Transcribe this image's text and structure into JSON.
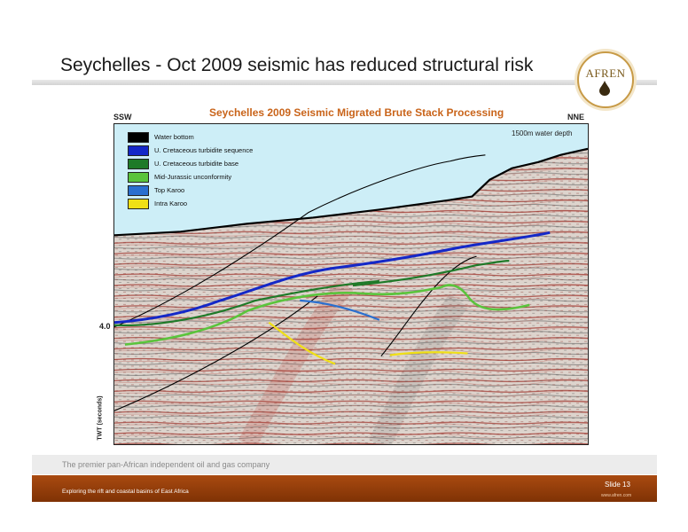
{
  "slide": {
    "title": "Seychelles - Oct 2009 seismic has reduced structural risk",
    "logo_text": "AFREN"
  },
  "figure": {
    "title": "Seychelles 2009 Seismic Migrated Brute Stack Processing",
    "left_direction": "SSW",
    "right_direction": "NNE",
    "water_depth_note": "1500m water depth",
    "axis_value": "4.0",
    "axis_label": "TWT (seconds)",
    "legend": [
      {
        "label": "Water bottom",
        "color": "#000000"
      },
      {
        "label": "U. Cretaceous turbidite sequence",
        "color": "#1428c8"
      },
      {
        "label": "U. Cretaceous turbidite base",
        "color": "#1e7a28"
      },
      {
        "label": "Mid-Jurassic unconformity",
        "color": "#5ac43c"
      },
      {
        "label": "Top Karoo",
        "color": "#2a6fcf"
      },
      {
        "label": "Intra Karoo",
        "color": "#f0e016"
      }
    ],
    "colors": {
      "sea": "#cdeef7",
      "seismic_base": "#d9cfc8",
      "reflector_red": "#9c2a22"
    }
  },
  "footer": {
    "tagline": "The premier pan-African independent oil and gas company",
    "subtitle": "Exploring the rift and coastal basins of East Africa",
    "slide_label": "Slide 13",
    "website": "www.afren.com",
    "bar_color": "#8c3a0a"
  }
}
